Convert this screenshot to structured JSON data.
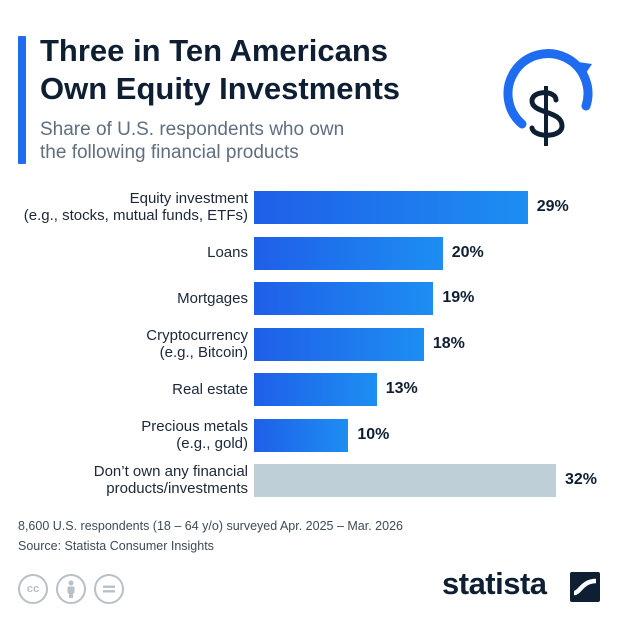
{
  "header": {
    "title_lines": [
      "Three in Ten Americans",
      "Own Equity Investments"
    ],
    "subtitle_lines": [
      "Share of U.S. respondents who own",
      "the following financial products"
    ]
  },
  "colors": {
    "accent": "#1f6cf0",
    "bar_gradient_start": "#1f5fe8",
    "bar_gradient_end": "#1d8ef2",
    "bar_muted": "#bfcfd8"
  },
  "icons": {
    "header_icon": "dollar-cycle-icon",
    "license_icons": [
      "creative-commons-icon",
      "attribution-icon",
      "no-derivatives-icon"
    ],
    "brand_icon": "statista-mark-icon"
  },
  "chart_data": {
    "type": "bar",
    "orientation": "horizontal",
    "title": "Three in Ten Americans Own Equity Investments",
    "subtitle": "Share of U.S. respondents who own the following financial products",
    "categories": [
      "Equity investment\n(e.g., stocks, mutual funds, ETFs)",
      "Loans",
      "Mortgages",
      "Cryptocurrency\n(e.g., Bitcoin)",
      "Real estate",
      "Precious metals\n(e.g., gold)",
      "Don’t own any financial\nproducts/investments"
    ],
    "values": [
      29,
      20,
      19,
      18,
      13,
      10,
      32
    ],
    "value_labels": [
      "29%",
      "20%",
      "19%",
      "18%",
      "13%",
      "10%",
      "32%"
    ],
    "highlight": [
      true,
      true,
      true,
      true,
      true,
      true,
      false
    ],
    "xlim": [
      0,
      32
    ],
    "grid": false,
    "legend": "none"
  },
  "footer": {
    "note_lines": [
      "8,600 U.S. respondents (18 – 64 y/o) surveyed Apr. 2025 – Mar. 2026",
      "Source: Statista Consumer Insights"
    ],
    "brand": "statista"
  }
}
